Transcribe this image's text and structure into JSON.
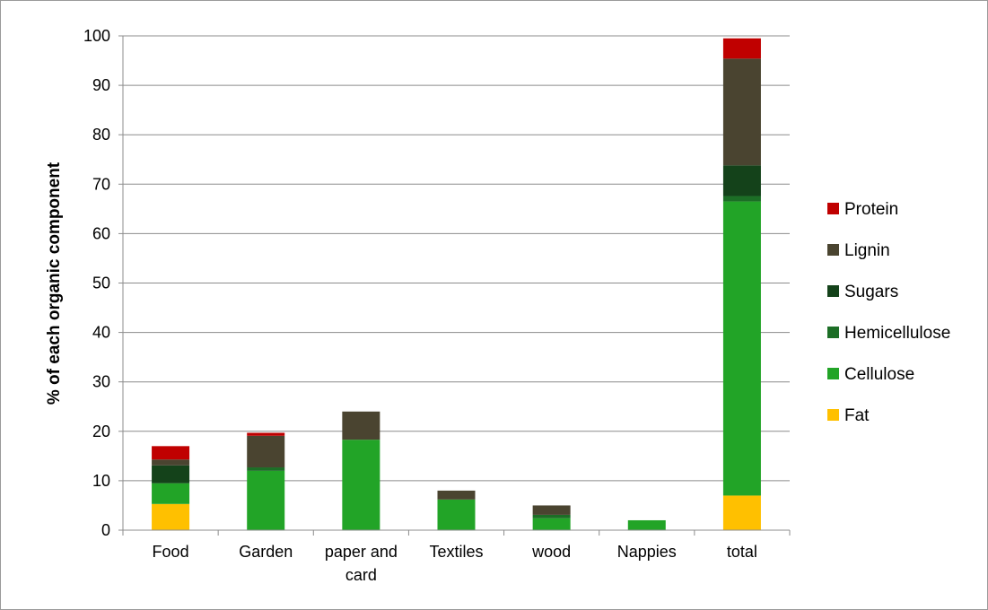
{
  "chart_data": {
    "type": "bar",
    "stacked": true,
    "categories": [
      "Food",
      "Garden",
      "paper and card",
      "Textiles",
      "wood",
      "Nappies",
      "total"
    ],
    "ylabel": "% of each organic component",
    "ylim": [
      0,
      100
    ],
    "yticks": [
      0,
      10,
      20,
      30,
      40,
      50,
      60,
      70,
      80,
      90,
      100
    ],
    "grid": true,
    "legend_position": "right",
    "series": [
      {
        "name": "Fat",
        "color": "#ffc000",
        "values": [
          5.3,
          0,
          0,
          0,
          0,
          0,
          7
        ]
      },
      {
        "name": "Cellulose",
        "color": "#22a427",
        "values": [
          4.2,
          12,
          18.3,
          6.2,
          2.4,
          2,
          59.5
        ]
      },
      {
        "name": "Hemicellulose",
        "color": "#1c6e26",
        "values": [
          0,
          0.7,
          0,
          0,
          0.7,
          0,
          1.1
        ]
      },
      {
        "name": "Sugars",
        "color": "#14421a",
        "values": [
          3.6,
          0,
          0,
          0,
          0,
          0,
          6.2
        ]
      },
      {
        "name": "Lignin",
        "color": "#4a4430",
        "values": [
          1.2,
          6.4,
          5.7,
          1.8,
          1.9,
          0,
          21.6
        ]
      },
      {
        "name": "Protein",
        "color": "#c00000",
        "values": [
          2.7,
          0.6,
          0,
          0,
          0,
          0,
          4.1
        ]
      }
    ]
  }
}
